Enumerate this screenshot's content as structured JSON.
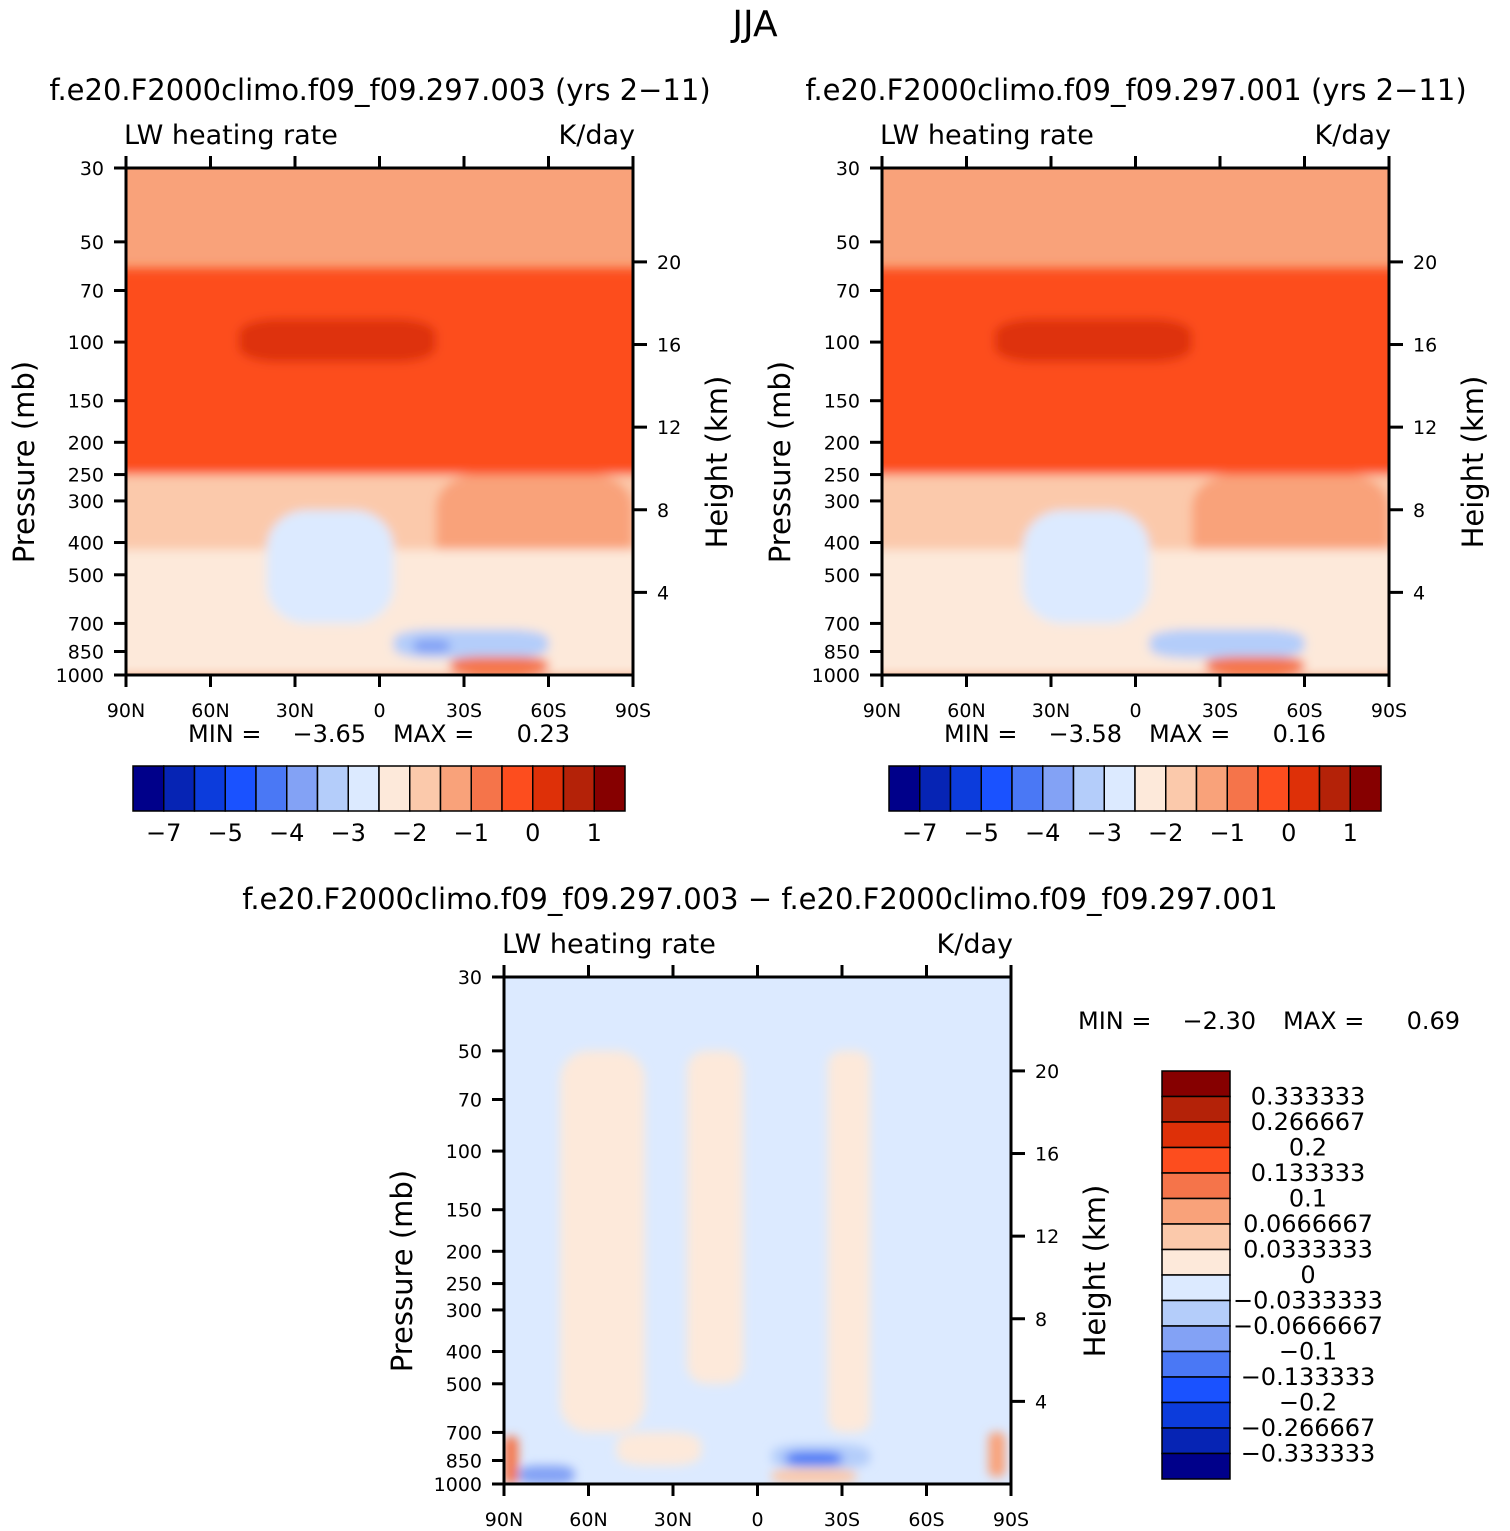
{
  "title": "JJA",
  "panels": [
    {
      "id": "p1",
      "header": "f.e20.F2000climo.f09_f09.297.003 (yrs 2−11)",
      "left_label": "LW heating rate",
      "right_label": "K/day",
      "min_label": "MIN =",
      "min_value": "−3.65",
      "max_label": "MAX =",
      "max_value": "0.23"
    },
    {
      "id": "p2",
      "header": "f.e20.F2000climo.f09_f09.297.001 (yrs 2−11)",
      "left_label": "LW heating rate",
      "right_label": "K/day",
      "min_label": "MIN =",
      "min_value": "−3.58",
      "max_label": "MAX =",
      "max_value": "0.16"
    },
    {
      "id": "p3",
      "header": "f.e20.F2000climo.f09_f09.297.003 − f.e20.F2000climo.f09_f09.297.001",
      "left_label": "LW heating rate",
      "right_label": "K/day",
      "min_label": "MIN =",
      "min_value": "−2.30",
      "max_label": "MAX =",
      "max_value": "0.69"
    }
  ],
  "axes": {
    "ylabel": "Pressure (mb)",
    "y2label": "Height (km)",
    "pressure_ticks": [
      "30",
      "50",
      "70",
      "100",
      "150",
      "200",
      "250",
      "300",
      "400",
      "500",
      "700",
      "850",
      "1000"
    ],
    "pressure_values": [
      30,
      50,
      70,
      100,
      150,
      200,
      250,
      300,
      400,
      500,
      700,
      850,
      1000
    ],
    "height_ticks": [
      "20",
      "16",
      "12",
      "8",
      "4"
    ],
    "height_values": [
      20,
      16,
      12,
      8,
      4
    ],
    "lat_ticks": [
      "90N",
      "60N",
      "30N",
      "0",
      "30S",
      "60S",
      "90S"
    ]
  },
  "colorbar_top": {
    "colors": [
      "#00008a",
      "#0624b4",
      "#0c3cdc",
      "#1a52ff",
      "#4a78f5",
      "#83a2f5",
      "#b4cdfa",
      "#dceaff",
      "#fde9da",
      "#fbc9ab",
      "#f9a27a",
      "#f5744a",
      "#fd4d1e",
      "#de3008",
      "#b42208",
      "#860000"
    ],
    "labels": [
      "−7",
      "−5",
      "−4",
      "−3",
      "−2",
      "−1",
      "0",
      "1"
    ]
  },
  "colorbar_diff": {
    "colors": [
      "#00008a",
      "#0624b4",
      "#0c3cdc",
      "#1a52ff",
      "#4a78f5",
      "#83a2f5",
      "#b4cdfa",
      "#dceaff",
      "#fde9da",
      "#fbc9ab",
      "#f9a27a",
      "#f5744a",
      "#fd4d1e",
      "#de3008",
      "#b42208",
      "#860000"
    ],
    "labels": [
      "0.333333",
      "0.266667",
      "0.2",
      "0.133333",
      "0.1",
      "0.0666667",
      "0.0333333",
      "0",
      "−0.0333333",
      "−0.0666667",
      "−0.1",
      "−0.133333",
      "−0.2",
      "−0.266667",
      "−0.333333"
    ]
  },
  "chart_data": [
    {
      "type": "heatmap",
      "title": "f.e20.F2000climo.f09_f09.297.003 (yrs 2−11)",
      "subtitle": "LW heating rate  K/day",
      "xlabel": "",
      "ylabel": "Pressure (mb)",
      "y2label": "Height (km)",
      "x": [
        "90N",
        "60N",
        "30N",
        "0",
        "30S",
        "60S",
        "90S"
      ],
      "y": [
        30,
        50,
        70,
        100,
        150,
        200,
        250,
        300,
        400,
        500,
        700,
        850,
        1000
      ],
      "y_scale": "log",
      "ylim": [
        30,
        1000
      ],
      "min": -3.65,
      "max": 0.23,
      "levels": [
        -7,
        -6,
        -5,
        -4.5,
        -4,
        -3.5,
        -3,
        -2.5,
        -2,
        -1.5,
        -1,
        -0.5,
        0,
        0.5,
        1
      ],
      "regions": [
        {
          "p_top": 30,
          "p_bot": 60,
          "value": -1.2
        },
        {
          "p_top": 60,
          "p_bot": 250,
          "value": -0.3
        },
        {
          "p_top": 85,
          "p_bot": 115,
          "value": 0.1,
          "lat_range": [
            "50N",
            "20S"
          ]
        },
        {
          "p_top": 250,
          "p_bot": 420,
          "value": -1.8
        },
        {
          "p_top": 250,
          "p_bot": 500,
          "value": -1.2,
          "lat_range": [
            "20S",
            "90S"
          ]
        },
        {
          "p_top": 420,
          "p_bot": 1000,
          "value": -2.2
        },
        {
          "p_top": 320,
          "p_bot": 700,
          "value": -2.7,
          "lat_range": [
            "40N",
            "5S"
          ]
        },
        {
          "p_top": 730,
          "p_bot": 890,
          "value": -3.3,
          "lat_range": [
            "5S",
            "60S"
          ]
        },
        {
          "p_top": 780,
          "p_bot": 860,
          "value": -3.6,
          "lat_range": [
            "12S",
            "25S"
          ]
        },
        {
          "p_top": 880,
          "p_bot": 1000,
          "value": -1.0,
          "lat_range": [
            "25S",
            "60S"
          ]
        }
      ]
    },
    {
      "type": "heatmap",
      "title": "f.e20.F2000climo.f09_f09.297.001 (yrs 2−11)",
      "subtitle": "LW heating rate  K/day",
      "xlabel": "",
      "ylabel": "Pressure (mb)",
      "y2label": "Height (km)",
      "x": [
        "90N",
        "60N",
        "30N",
        "0",
        "30S",
        "60S",
        "90S"
      ],
      "y": [
        30,
        50,
        70,
        100,
        150,
        200,
        250,
        300,
        400,
        500,
        700,
        850,
        1000
      ],
      "y_scale": "log",
      "ylim": [
        30,
        1000
      ],
      "min": -3.58,
      "max": 0.16,
      "levels": [
        -7,
        -6,
        -5,
        -4.5,
        -4,
        -3.5,
        -3,
        -2.5,
        -2,
        -1.5,
        -1,
        -0.5,
        0,
        0.5,
        1
      ],
      "regions": [
        {
          "p_top": 30,
          "p_bot": 60,
          "value": -1.2
        },
        {
          "p_top": 60,
          "p_bot": 250,
          "value": -0.3
        },
        {
          "p_top": 85,
          "p_bot": 115,
          "value": 0.1,
          "lat_range": [
            "50N",
            "20S"
          ]
        },
        {
          "p_top": 250,
          "p_bot": 420,
          "value": -1.8
        },
        {
          "p_top": 250,
          "p_bot": 500,
          "value": -1.2,
          "lat_range": [
            "20S",
            "90S"
          ]
        },
        {
          "p_top": 420,
          "p_bot": 1000,
          "value": -2.2
        },
        {
          "p_top": 320,
          "p_bot": 700,
          "value": -2.7,
          "lat_range": [
            "40N",
            "5S"
          ]
        },
        {
          "p_top": 730,
          "p_bot": 890,
          "value": -3.3,
          "lat_range": [
            "5S",
            "60S"
          ]
        },
        {
          "p_top": 780,
          "p_bot": 860,
          "value": -3.5,
          "lat_range": [
            "15S",
            "28S"
          ]
        },
        {
          "p_top": 880,
          "p_bot": 1000,
          "value": -1.0,
          "lat_range": [
            "25S",
            "60S"
          ]
        }
      ]
    },
    {
      "type": "heatmap",
      "title": "f.e20.F2000climo.f09_f09.297.003 − f.e20.F2000climo.f09_f09.297.001",
      "subtitle": "LW heating rate  K/day",
      "xlabel": "",
      "ylabel": "Pressure (mb)",
      "y2label": "Height (km)",
      "x": [
        "90N",
        "60N",
        "30N",
        "0",
        "30S",
        "60S",
        "90S"
      ],
      "y": [
        30,
        50,
        70,
        100,
        150,
        200,
        250,
        300,
        400,
        500,
        700,
        850,
        1000
      ],
      "y_scale": "log",
      "ylim": [
        30,
        1000
      ],
      "min": -2.3,
      "max": 0.69,
      "levels": [
        -0.333333,
        -0.266667,
        -0.2,
        -0.133333,
        -0.1,
        -0.0666667,
        -0.0333333,
        0,
        0.0333333,
        0.0666667,
        0.1,
        0.133333,
        0.2,
        0.266667,
        0.333333
      ],
      "regions": [
        {
          "p_top": 30,
          "p_bot": 1000,
          "value": -0.01
        },
        {
          "p_top": 50,
          "p_bot": 700,
          "value": 0.01,
          "lat_range": [
            "70N",
            "40N"
          ]
        },
        {
          "p_top": 50,
          "p_bot": 500,
          "value": 0.01,
          "lat_range": [
            "25N",
            "5N"
          ]
        },
        {
          "p_top": 50,
          "p_bot": 700,
          "value": 0.01,
          "lat_range": [
            "25S",
            "40S"
          ]
        },
        {
          "p_top": 700,
          "p_bot": 880,
          "value": 0.01,
          "lat_range": [
            "50N",
            "20N"
          ]
        },
        {
          "p_top": 760,
          "p_bot": 900,
          "value": -0.05,
          "lat_range": [
            "5S",
            "40S"
          ]
        },
        {
          "p_top": 800,
          "p_bot": 880,
          "value": -0.12,
          "lat_range": [
            "10S",
            "30S"
          ]
        },
        {
          "p_top": 900,
          "p_bot": 1000,
          "value": 0.05,
          "lat_range": [
            "5S",
            "35S"
          ]
        },
        {
          "p_top": 720,
          "p_bot": 1000,
          "value": 0.12,
          "lat_range": [
            "90N",
            "85N"
          ]
        },
        {
          "p_top": 880,
          "p_bot": 1000,
          "value": -0.07,
          "lat_range": [
            "85N",
            "65N"
          ]
        },
        {
          "p_top": 700,
          "p_bot": 950,
          "value": 0.07,
          "lat_range": [
            "82S",
            "88S"
          ]
        }
      ]
    }
  ]
}
